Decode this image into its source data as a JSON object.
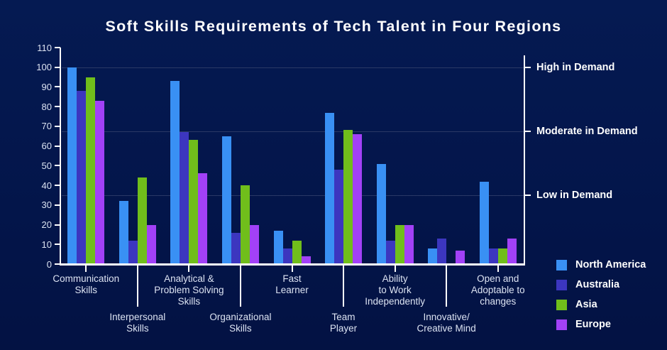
{
  "title": "Soft Skills Requirements of Tech Talent in Four Regions",
  "colors": {
    "background": "#03164d",
    "axis": "#ffffff",
    "gridline": "#2a3866",
    "tick_label": "#dce3f2",
    "category_label": "#dce3f2",
    "demand_label": "#ffffff",
    "legend_label": "#ffffff"
  },
  "chart_data": {
    "type": "bar",
    "title": "Soft Skills Requirements of Tech Talent in Four Regions",
    "xlabel": "",
    "ylabel": "",
    "ylim": [
      0,
      110
    ],
    "y_ticks": [
      0,
      10,
      20,
      30,
      40,
      50,
      60,
      70,
      80,
      90,
      100,
      110
    ],
    "grid": "horizontal lines at demand levels only",
    "legend_position": "bottom-right",
    "categories": [
      {
        "name": "Communication Skills",
        "lines": [
          "Communication",
          "Skills"
        ],
        "label_row": "top"
      },
      {
        "name": "Interpersonal Skills",
        "lines": [
          "Interpersonal",
          "Skills"
        ],
        "label_row": "bottom"
      },
      {
        "name": "Analytical & Problem Solving Skills",
        "lines": [
          "Analytical &",
          "Problem Solving",
          "Skills"
        ],
        "label_row": "top"
      },
      {
        "name": "Organizational Skills",
        "lines": [
          "Organizational",
          "Skills"
        ],
        "label_row": "bottom"
      },
      {
        "name": "Fast Learner",
        "lines": [
          "Fast",
          "Learner"
        ],
        "label_row": "top"
      },
      {
        "name": "Team Player",
        "lines": [
          "Team",
          "Player"
        ],
        "label_row": "bottom"
      },
      {
        "name": "Ability to Work Independently",
        "lines": [
          "Ability",
          "to Work",
          "Independently"
        ],
        "label_row": "top"
      },
      {
        "name": "Innovative/Creative Mind",
        "lines": [
          "Innovative/",
          "Creative Mind"
        ],
        "label_row": "bottom"
      },
      {
        "name": "Open and Adoptable to changes",
        "lines": [
          "Open and",
          "Adoptable to",
          "changes"
        ],
        "label_row": "top"
      }
    ],
    "series": [
      {
        "name": "North America",
        "color": "#3990f4",
        "values": [
          100,
          32,
          93,
          65,
          17,
          77,
          51,
          8,
          42
        ]
      },
      {
        "name": "Australia",
        "color": "#3c36bf",
        "values": [
          88,
          12,
          67,
          16,
          8,
          48,
          12,
          13,
          8
        ]
      },
      {
        "name": "Asia",
        "color": "#70be1b",
        "values": [
          95,
          44,
          63,
          40,
          12,
          68,
          20,
          0,
          8
        ]
      },
      {
        "name": "Europe",
        "color": "#a241f7",
        "values": [
          83,
          20,
          46,
          20,
          4,
          66,
          20,
          7,
          13
        ]
      }
    ],
    "right_axis_labels": [
      {
        "label": "High in Demand",
        "value": 100
      },
      {
        "label": "Moderate in Demand",
        "value": 67.5
      },
      {
        "label": "Low in Demand",
        "value": 35
      }
    ]
  }
}
